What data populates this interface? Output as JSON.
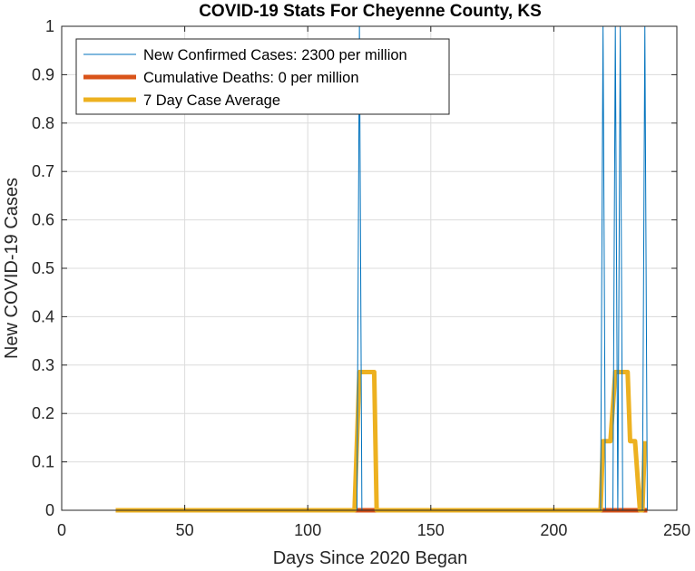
{
  "chart_data": {
    "type": "line",
    "title": "COVID-19 Stats For Cheyenne County, KS",
    "xlabel": "Days Since 2020 Began",
    "ylabel": "New COVID-19 Cases",
    "xlim": [
      0,
      250
    ],
    "ylim": [
      0,
      1
    ],
    "grid": true,
    "legend_position": "top-left",
    "x_ticks": [
      0,
      50,
      100,
      150,
      200,
      250
    ],
    "x_tick_labels": [
      "0",
      "50",
      "100",
      "150",
      "200",
      "250"
    ],
    "y_ticks": [
      0,
      0.1,
      0.2,
      0.3,
      0.4,
      0.5,
      0.6,
      0.7,
      0.8,
      0.9,
      1
    ],
    "y_tick_labels": [
      "0",
      "0.1",
      "0.2",
      "0.3",
      "0.4",
      "0.5",
      "0.6",
      "0.7",
      "0.8",
      "0.9",
      "1"
    ],
    "series": [
      {
        "name": "New Confirmed Cases: 2300 per million",
        "color": "#0072BD",
        "line_width": "thin",
        "x": [
          22,
          120,
          121,
          122,
          123,
          219,
          220,
          221,
          224,
          225,
          226,
          227,
          228,
          229,
          236,
          237,
          238
        ],
        "y": [
          0,
          0,
          1,
          0,
          0,
          0,
          1,
          0,
          0,
          1,
          0,
          1,
          0,
          0,
          0,
          1,
          0
        ]
      },
      {
        "name": "Cumulative Deaths: 0 per million",
        "color": "#D95319",
        "line_width": "thick",
        "x": [
          22,
          238
        ],
        "y": [
          0,
          0
        ]
      },
      {
        "name": "7 Day Case Average",
        "color": "#EDB120",
        "line_width": "thick",
        "x": [
          22,
          119,
          121,
          127,
          128,
          219,
          220,
          223,
          225,
          230,
          231,
          232,
          233,
          235,
          236,
          237
        ],
        "y": [
          0,
          0,
          0.2857,
          0.2857,
          0,
          0,
          0.1429,
          0.1429,
          0.2857,
          0.2857,
          0.1429,
          0.1429,
          0.1429,
          0,
          0,
          0.1429
        ]
      }
    ]
  }
}
